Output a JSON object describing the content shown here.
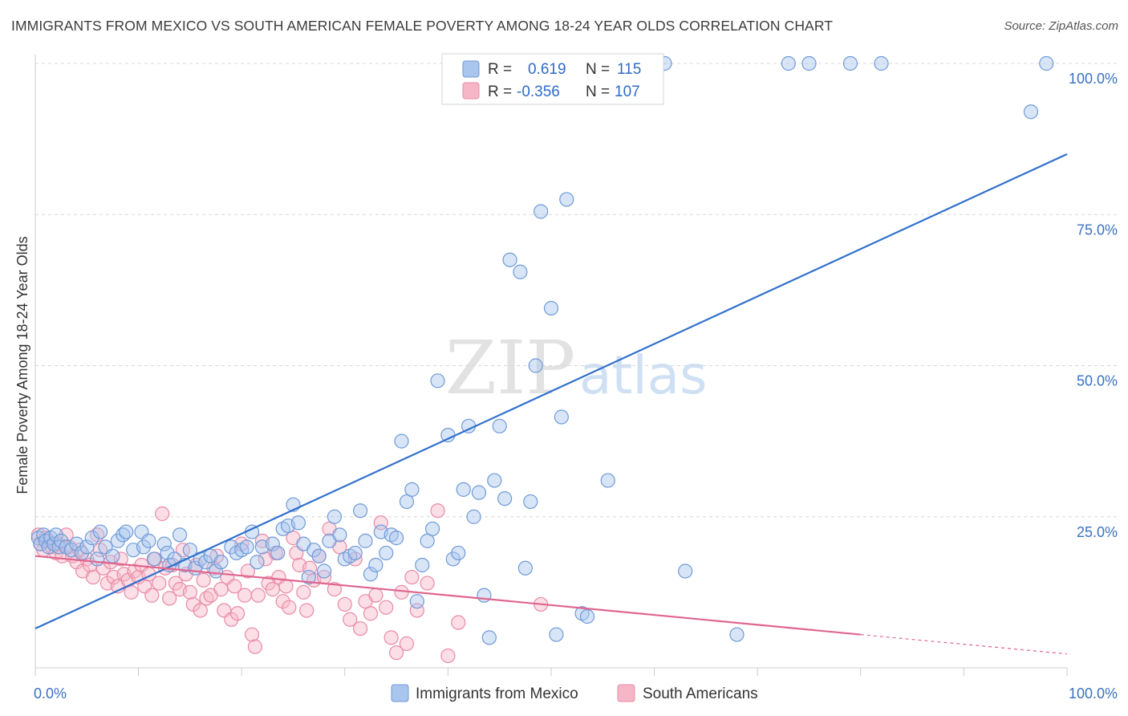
{
  "title": "IMMIGRANTS FROM MEXICO VS SOUTH AMERICAN FEMALE POVERTY AMONG 18-24 YEAR OLDS CORRELATION CHART",
  "source": "Source: ZipAtlas.com",
  "watermark": {
    "zip": "ZIP",
    "atlas": "atlas"
  },
  "legend": {
    "r_label": "R =",
    "n_label": "N =",
    "mexico": {
      "r": "0.619",
      "n": "115"
    },
    "south_american": {
      "r": "-0.356",
      "n": "107"
    }
  },
  "bottom_legend": {
    "mexico": "Immigrants from Mexico",
    "south_american": "South Americans"
  },
  "colors": {
    "mexico_fill": "#a9c6ee",
    "mexico_stroke": "#6f9ad8",
    "mexico_line": "#2f6fcc",
    "sa_fill": "#f6b6c8",
    "sa_stroke": "#e98aa6",
    "sa_line": "#e0668f",
    "grid": "#d8d8d8",
    "axis": "#cccccc",
    "tick_text": "#3a72c4"
  },
  "chart_data": {
    "type": "scatter",
    "title": "IMMIGRANTS FROM MEXICO VS SOUTH AMERICAN FEMALE POVERTY AMONG 18-24 YEAR OLDS CORRELATION CHART",
    "xlabel": "",
    "ylabel": "Female Poverty Among 18-24 Year Olds",
    "xlim": [
      0,
      100
    ],
    "ylim": [
      0,
      100
    ],
    "x_tick_labels": [
      "0.0%",
      "100.0%"
    ],
    "y_ticks": [
      25,
      50,
      75,
      100
    ],
    "y_tick_labels": [
      "25.0%",
      "50.0%",
      "75.0%",
      "100.0%"
    ],
    "grid": true,
    "legend_position": "top-center",
    "series": [
      {
        "name": "Immigrants from Mexico",
        "r": 0.619,
        "n": 115,
        "trend": {
          "x": [
            0,
            100
          ],
          "y": [
            6.5,
            85.0
          ]
        },
        "points": [
          [
            0.3,
            21.5
          ],
          [
            0.5,
            20.5
          ],
          [
            0.8,
            22
          ],
          [
            1,
            21
          ],
          [
            1.3,
            20
          ],
          [
            1.5,
            21.5
          ],
          [
            1.8,
            20.5
          ],
          [
            2,
            22
          ],
          [
            2.3,
            20
          ],
          [
            2.5,
            21
          ],
          [
            3,
            20
          ],
          [
            3.5,
            19.5
          ],
          [
            4,
            20.5
          ],
          [
            4.5,
            19
          ],
          [
            5,
            20
          ],
          [
            5.5,
            21.5
          ],
          [
            6,
            18
          ],
          [
            6.3,
            22.5
          ],
          [
            6.8,
            20
          ],
          [
            7.5,
            18.5
          ],
          [
            8,
            21
          ],
          [
            8.5,
            22
          ],
          [
            8.8,
            22.5
          ],
          [
            9.5,
            19.5
          ],
          [
            10.3,
            22.5
          ],
          [
            10.5,
            20
          ],
          [
            11,
            21
          ],
          [
            11.5,
            18
          ],
          [
            12.5,
            20.5
          ],
          [
            12.8,
            19
          ],
          [
            13,
            17
          ],
          [
            13.5,
            18
          ],
          [
            14,
            22
          ],
          [
            14.5,
            17
          ],
          [
            15,
            19.5
          ],
          [
            15.5,
            16.5
          ],
          [
            16,
            18
          ],
          [
            16.5,
            17.5
          ],
          [
            17,
            18.5
          ],
          [
            17.5,
            16
          ],
          [
            18,
            17.5
          ],
          [
            19,
            20
          ],
          [
            19.5,
            19
          ],
          [
            20,
            19.5
          ],
          [
            20.5,
            20
          ],
          [
            21,
            22.5
          ],
          [
            21.5,
            17.5
          ],
          [
            22,
            20
          ],
          [
            23,
            20.5
          ],
          [
            23.5,
            19
          ],
          [
            24,
            23
          ],
          [
            24.5,
            23.5
          ],
          [
            25,
            27
          ],
          [
            25.5,
            24
          ],
          [
            26,
            20.5
          ],
          [
            26.5,
            15
          ],
          [
            27,
            19.5
          ],
          [
            27.5,
            18.5
          ],
          [
            28,
            16
          ],
          [
            28.5,
            21
          ],
          [
            29,
            25
          ],
          [
            29.5,
            22
          ],
          [
            30,
            18
          ],
          [
            30.5,
            18.5
          ],
          [
            31,
            19
          ],
          [
            31.5,
            26
          ],
          [
            32,
            21
          ],
          [
            32.5,
            15.5
          ],
          [
            33,
            17
          ],
          [
            33.5,
            22.5
          ],
          [
            34,
            19
          ],
          [
            34.5,
            22
          ],
          [
            35,
            21.5
          ],
          [
            35.5,
            37.5
          ],
          [
            36,
            27.5
          ],
          [
            36.5,
            29.5
          ],
          [
            37,
            11
          ],
          [
            37.5,
            17
          ],
          [
            38,
            21
          ],
          [
            38.5,
            23
          ],
          [
            39,
            47.5
          ],
          [
            40,
            38.5
          ],
          [
            40.5,
            18
          ],
          [
            41,
            19
          ],
          [
            41.5,
            29.5
          ],
          [
            42,
            40
          ],
          [
            42.5,
            25
          ],
          [
            43,
            29
          ],
          [
            43.5,
            12
          ],
          [
            44,
            5
          ],
          [
            44.5,
            31
          ],
          [
            45,
            40
          ],
          [
            45.5,
            28
          ],
          [
            46,
            67.5
          ],
          [
            47,
            65.5
          ],
          [
            47.5,
            16.5
          ],
          [
            48,
            27.5
          ],
          [
            48.5,
            50
          ],
          [
            49,
            75.5
          ],
          [
            50,
            59.5
          ],
          [
            50.5,
            5.5
          ],
          [
            51,
            41.5
          ],
          [
            51.5,
            77.5
          ],
          [
            53,
            9
          ],
          [
            53.5,
            8.5
          ],
          [
            55.5,
            31
          ],
          [
            63,
            16
          ],
          [
            68,
            5.5
          ],
          [
            73,
            100
          ],
          [
            75,
            100
          ],
          [
            79,
            100
          ],
          [
            82,
            100
          ],
          [
            98,
            100
          ],
          [
            96.5,
            92
          ],
          [
            61,
            100
          ]
        ]
      },
      {
        "name": "South Americans",
        "r": -0.356,
        "n": 107,
        "trend": {
          "x": [
            0,
            80
          ],
          "y": [
            18.5,
            5.5
          ]
        },
        "trend_dashed": {
          "x": [
            80,
            100
          ],
          "y": [
            5.5,
            2.3
          ]
        },
        "points": [
          [
            0.3,
            22
          ],
          [
            0.5,
            20.5
          ],
          [
            0.8,
            19.5
          ],
          [
            1,
            21.5
          ],
          [
            1.3,
            21
          ],
          [
            1.6,
            20
          ],
          [
            2,
            19
          ],
          [
            2.3,
            20.5
          ],
          [
            2.6,
            18.5
          ],
          [
            3,
            22
          ],
          [
            3.3,
            20
          ],
          [
            3.6,
            18.5
          ],
          [
            4,
            17.5
          ],
          [
            4.3,
            19.5
          ],
          [
            4.6,
            16
          ],
          [
            5,
            18
          ],
          [
            5.3,
            17
          ],
          [
            5.6,
            15
          ],
          [
            6,
            22
          ],
          [
            6.3,
            19.5
          ],
          [
            6.6,
            16.5
          ],
          [
            7,
            14
          ],
          [
            7.3,
            17.5
          ],
          [
            7.6,
            15
          ],
          [
            8,
            13.5
          ],
          [
            8.3,
            18
          ],
          [
            8.6,
            15.5
          ],
          [
            9,
            14.5
          ],
          [
            9.3,
            12.5
          ],
          [
            9.6,
            16
          ],
          [
            10,
            15
          ],
          [
            10.3,
            17
          ],
          [
            10.6,
            13.5
          ],
          [
            11,
            15.5
          ],
          [
            11.3,
            12
          ],
          [
            11.6,
            18
          ],
          [
            12,
            14
          ],
          [
            12.3,
            25.5
          ],
          [
            12.6,
            16.5
          ],
          [
            13,
            11.5
          ],
          [
            13.3,
            17
          ],
          [
            13.6,
            14
          ],
          [
            14,
            13
          ],
          [
            14.3,
            19.5
          ],
          [
            14.6,
            15.5
          ],
          [
            15,
            12.5
          ],
          [
            15.3,
            10.5
          ],
          [
            15.6,
            17
          ],
          [
            16,
            9.5
          ],
          [
            16.3,
            14.5
          ],
          [
            16.6,
            11.5
          ],
          [
            17,
            12
          ],
          [
            17.3,
            16.5
          ],
          [
            17.6,
            18.5
          ],
          [
            18,
            13
          ],
          [
            18.3,
            9.5
          ],
          [
            18.6,
            15
          ],
          [
            19,
            8
          ],
          [
            19.3,
            13.5
          ],
          [
            19.6,
            9
          ],
          [
            20,
            20.5
          ],
          [
            20.3,
            12
          ],
          [
            20.6,
            16
          ],
          [
            21,
            5.5
          ],
          [
            21.3,
            3.5
          ],
          [
            21.6,
            12
          ],
          [
            22,
            21
          ],
          [
            22.3,
            18
          ],
          [
            22.6,
            14
          ],
          [
            23,
            13
          ],
          [
            23.3,
            19
          ],
          [
            23.6,
            15
          ],
          [
            24,
            11
          ],
          [
            24.3,
            13.5
          ],
          [
            24.6,
            10
          ],
          [
            25,
            21.5
          ],
          [
            25.3,
            19
          ],
          [
            25.6,
            17
          ],
          [
            26,
            12.5
          ],
          [
            26.3,
            9.5
          ],
          [
            26.6,
            16.5
          ],
          [
            27,
            14.5
          ],
          [
            27.5,
            18.5
          ],
          [
            28,
            15
          ],
          [
            28.5,
            23
          ],
          [
            29,
            13
          ],
          [
            29.5,
            20
          ],
          [
            30,
            10.5
          ],
          [
            30.5,
            8
          ],
          [
            31,
            18
          ],
          [
            31.5,
            6.5
          ],
          [
            32,
            11
          ],
          [
            32.5,
            9
          ],
          [
            33,
            12
          ],
          [
            33.5,
            24
          ],
          [
            34,
            10
          ],
          [
            34.5,
            5
          ],
          [
            35,
            2.5
          ],
          [
            35.5,
            12.5
          ],
          [
            36,
            4
          ],
          [
            36.5,
            15
          ],
          [
            37,
            9.5
          ],
          [
            38,
            14
          ],
          [
            39,
            26
          ],
          [
            40,
            2
          ],
          [
            41,
            7.5
          ],
          [
            49,
            10.5
          ]
        ]
      }
    ]
  }
}
